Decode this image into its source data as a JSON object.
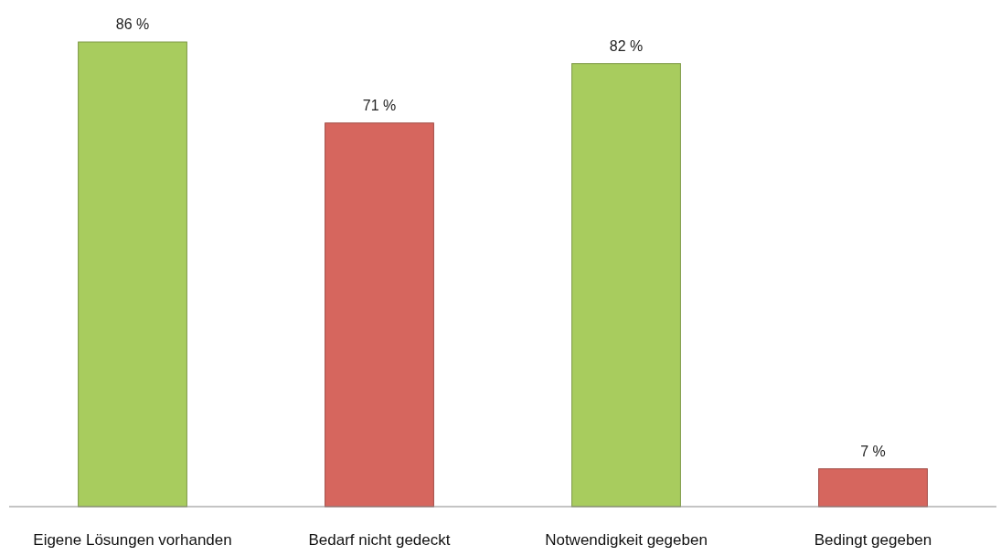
{
  "chart_data": {
    "type": "bar",
    "categories": [
      "Eigene Lösungen vorhanden",
      "Bedarf nicht gedeckt",
      "Notwendigkeit gegeben",
      "Bedingt gegeben"
    ],
    "values": [
      86,
      71,
      82,
      7
    ],
    "colors": [
      "#a8cc5e",
      "#d6665e",
      "#a8cc5e",
      "#d6665e"
    ],
    "value_labels": [
      "86 %",
      "71 %",
      "82 %",
      "7 %"
    ],
    "tick_labels": "x"
  }
}
